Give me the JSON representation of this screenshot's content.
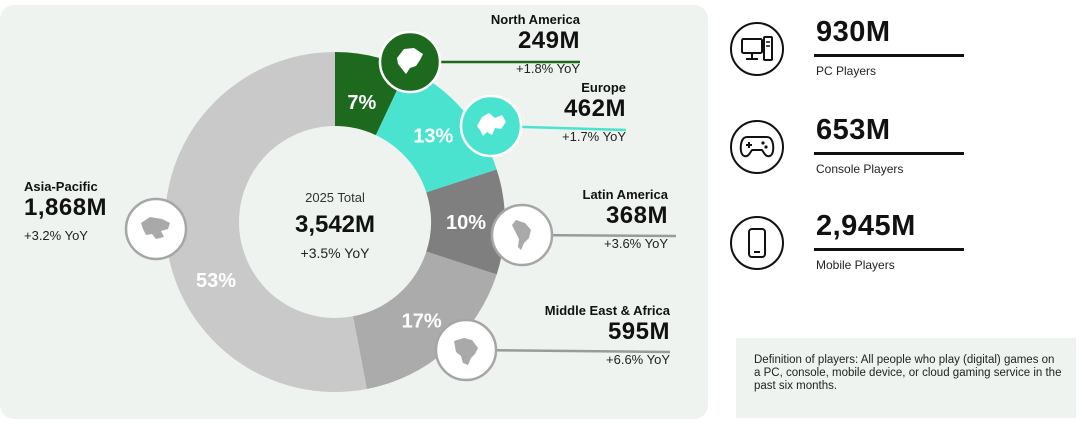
{
  "chart_data": {
    "type": "donut",
    "center_label": "2025 Total",
    "total": "3,542M",
    "total_yoy": "+3.5% YoY",
    "segments": [
      {
        "name": "North America",
        "percent": 7,
        "percent_label": "7%",
        "value_label": "249M",
        "yoy": "+1.8% YoY",
        "color": "#1d6a1f",
        "label_color": "#ffffff",
        "icon": "north-america-map-icon"
      },
      {
        "name": "Europe",
        "percent": 13,
        "percent_label": "13%",
        "value_label": "462M",
        "yoy": "+1.7% YoY",
        "color": "#49e3cf",
        "label_color": "#ffffff",
        "icon": "europe-map-icon"
      },
      {
        "name": "Latin America",
        "percent": 10,
        "percent_label": "10%",
        "value_label": "368M",
        "yoy": "+3.6% YoY",
        "color": "#7f7f7f",
        "label_color": "#ffffff",
        "icon": "latin-america-map-icon"
      },
      {
        "name": "Middle East & Africa",
        "percent": 17,
        "percent_label": "17%",
        "value_label": "595M",
        "yoy": "+6.6% YoY",
        "color": "#ababab",
        "label_color": "#ffffff",
        "icon": "africa-map-icon"
      },
      {
        "name": "Asia-Pacific",
        "percent": 53,
        "percent_label": "53%",
        "value_label": "1,868M",
        "yoy": "+3.2% YoY",
        "color": "#c9c9c9",
        "label_color": "#ffffff",
        "icon": "asia-pacific-map-icon"
      }
    ]
  },
  "regions": {
    "north_america": {
      "name": "North America",
      "value": "249M",
      "yoy": "+1.8% YoY"
    },
    "europe": {
      "name": "Europe",
      "value": "462M",
      "yoy": "+1.7% YoY"
    },
    "latin_america": {
      "name": "Latin America",
      "value": "368M",
      "yoy": "+3.6% YoY"
    },
    "mea": {
      "name": "Middle East & Africa",
      "value": "595M",
      "yoy": "+6.6% YoY"
    },
    "asia_pacific": {
      "name": "Asia-Pacific",
      "value": "1,868M",
      "yoy": "+3.2% YoY"
    }
  },
  "platforms": [
    {
      "value": "930M",
      "label": "PC Players",
      "icon": "pc-icon"
    },
    {
      "value": "653M",
      "label": "Console Players",
      "icon": "gamepad-icon"
    },
    {
      "value": "2,945M",
      "label": "Mobile Players",
      "icon": "mobile-phone-icon"
    }
  ],
  "definition": "Definition of players: All people who play (digital) games on a PC, console, mobile device, or cloud gaming service in the past six months.",
  "colors": {
    "panel_bg": "#eef3ef",
    "accent_green": "#1d6a1f",
    "accent_teal": "#49e3cf"
  }
}
